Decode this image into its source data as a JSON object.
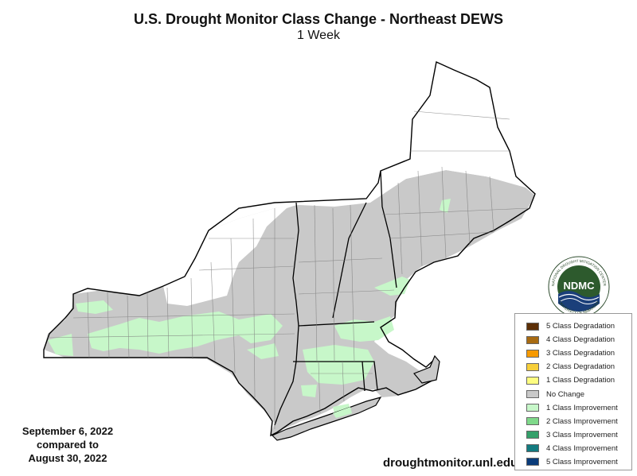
{
  "title": "U.S. Drought Monitor Class Change - Northeast DEWS",
  "subtitle": "1 Week",
  "date_compare": {
    "current": "September 6, 2022",
    "compared_to": "compared to",
    "previous": "August 30, 2022"
  },
  "website": "droughtmonitor.unl.edu",
  "logo": {
    "abbr": "NDMC",
    "arc_top": "NATIONAL DROUGHT MITIGATION CENTER",
    "arc_bottom": "UNIVERSITY OF NEBRASKA"
  },
  "colors": {
    "no_change": "#c9c9c9",
    "improve_1": "#c7f7c9",
    "state_line": "#000000",
    "county_line": "#7a7a7a"
  },
  "legend": [
    {
      "label": "5 Class Degradation",
      "color": "#5c2f07"
    },
    {
      "label": "4 Class Degradation",
      "color": "#a86b12"
    },
    {
      "label": "3 Class Degradation",
      "color": "#f79a00"
    },
    {
      "label": "2 Class Degradation",
      "color": "#f7cf3a"
    },
    {
      "label": "1 Class Degradation",
      "color": "#fdfd80"
    },
    {
      "label": "No Change",
      "color": "#c9c9c9"
    },
    {
      "label": "1 Class Improvement",
      "color": "#c7f7c9"
    },
    {
      "label": "2 Class Improvement",
      "color": "#7fd98a"
    },
    {
      "label": "3 Class Improvement",
      "color": "#34a06a"
    },
    {
      "label": "4 Class Improvement",
      "color": "#137b80"
    },
    {
      "label": "5 Class Improvement",
      "color": "#0a3c7a"
    }
  ]
}
